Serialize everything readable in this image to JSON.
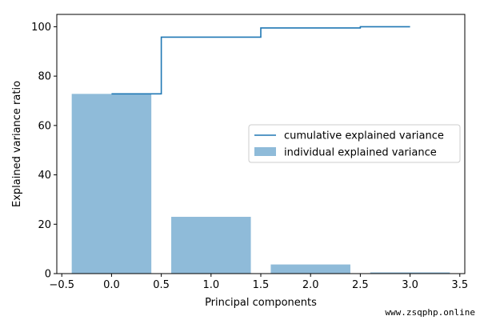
{
  "chart_data": {
    "type": "bar",
    "xlabel": "Principal components",
    "ylabel": "Explained variance ratio",
    "xlim": [
      -0.55,
      3.55
    ],
    "ylim": [
      0,
      105
    ],
    "xticks": [
      -0.5,
      0.0,
      0.5,
      1.0,
      1.5,
      2.0,
      2.5,
      3.0,
      3.5
    ],
    "xtick_labels": [
      "−0.5",
      "0.0",
      "0.5",
      "1.0",
      "1.5",
      "2.0",
      "2.5",
      "3.0",
      "3.5"
    ],
    "yticks": [
      0,
      20,
      40,
      60,
      80,
      100
    ],
    "ytick_labels": [
      "0",
      "20",
      "40",
      "60",
      "80",
      "100"
    ],
    "grid": false,
    "legend_position": "center-right",
    "series": [
      {
        "name": "individual explained variance",
        "kind": "bar",
        "color": "#8fbbd9",
        "x": [
          0,
          1,
          2,
          3
        ],
        "values": [
          72.8,
          23.0,
          3.7,
          0.5
        ]
      },
      {
        "name": "cumulative explained variance",
        "kind": "step",
        "color": "#1f77b4",
        "x": [
          0,
          1,
          2,
          3
        ],
        "values": [
          72.8,
          95.8,
          99.5,
          100.0
        ]
      }
    ]
  },
  "watermark": "www.zsqphp.online"
}
